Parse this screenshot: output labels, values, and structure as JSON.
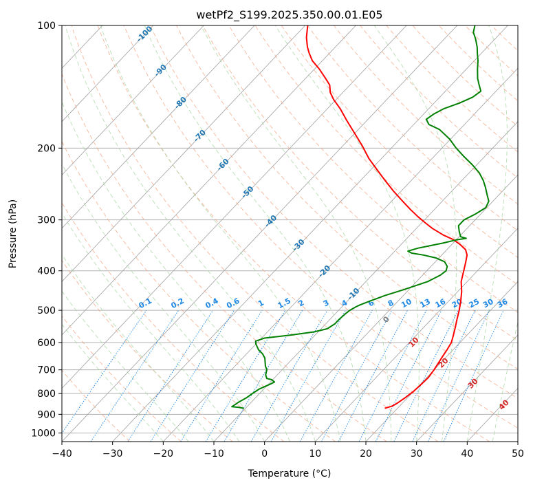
{
  "chart_data": {
    "type": "line",
    "title": "wetPf2_S199.2025.350.00.01.E05",
    "xlabel": "Temperature (°C)",
    "ylabel": "Pressure (hPa)",
    "xlim": [
      -40,
      50
    ],
    "ylim": [
      1050,
      100
    ],
    "x_ticks": [
      -40,
      -30,
      -20,
      -10,
      0,
      10,
      20,
      30,
      40,
      50
    ],
    "y_ticks": [
      100,
      200,
      300,
      400,
      500,
      600,
      700,
      800,
      900,
      1000
    ],
    "colors": {
      "temperature": "#ff0000",
      "dewpoint": "#008000",
      "isotherm": "#a0a0a0",
      "dry_adiabat": "#f4a582",
      "moist_adiabat": "#a6d6a0",
      "mixing_ratio": "#1e88e5",
      "isotherm_label": "#1f77b4",
      "theta_label": "#d62728",
      "zero_label": "#808080"
    },
    "isotherm_labels": [
      "-100",
      "-90",
      "-80",
      "-70",
      "-60",
      "-50",
      "-40",
      "-30",
      "-20",
      "-10",
      "0",
      "10",
      "20",
      "30",
      "40"
    ],
    "mixing_ratio_labels": [
      "0.1",
      "0.2",
      "0.4",
      "0.6",
      "1",
      "1.5",
      "2",
      "3",
      "4",
      "6",
      "8",
      "10",
      "13",
      "16",
      "20",
      "25",
      "30",
      "36"
    ],
    "series": [
      {
        "name": "Temperature",
        "points": [
          [
            17.5,
            870
          ],
          [
            18.5,
            860
          ],
          [
            19.0,
            845
          ],
          [
            19.5,
            820
          ],
          [
            20.0,
            790
          ],
          [
            20.2,
            760
          ],
          [
            20.3,
            730
          ],
          [
            20.0,
            700
          ],
          [
            19.6,
            675
          ],
          [
            19.2,
            650
          ],
          [
            18.8,
            625
          ],
          [
            18.3,
            600
          ],
          [
            17.3,
            575
          ],
          [
            16.2,
            550
          ],
          [
            15.0,
            525
          ],
          [
            13.8,
            500
          ],
          [
            12.4,
            475
          ],
          [
            10.8,
            450
          ],
          [
            8.8,
            425
          ],
          [
            7.3,
            400
          ],
          [
            6.0,
            380
          ],
          [
            5.0,
            366
          ],
          [
            3.7,
            355
          ],
          [
            1.7,
            345
          ],
          [
            -0.7,
            335
          ],
          [
            -3.4,
            327
          ],
          [
            -6.8,
            315
          ],
          [
            -9.3,
            305
          ],
          [
            -11.8,
            295
          ],
          [
            -14.7,
            283
          ],
          [
            -17.8,
            270
          ],
          [
            -21.5,
            255
          ],
          [
            -25.2,
            240
          ],
          [
            -28.5,
            227
          ],
          [
            -32.5,
            212
          ],
          [
            -36.0,
            198
          ],
          [
            -40.0,
            184
          ],
          [
            -44.0,
            171
          ],
          [
            -47.5,
            160
          ],
          [
            -50.5,
            152
          ],
          [
            -52.5,
            146
          ],
          [
            -54.0,
            140
          ],
          [
            -56.0,
            135
          ],
          [
            -59.0,
            128
          ],
          [
            -62.0,
            122
          ],
          [
            -64.0,
            117
          ],
          [
            -65.5,
            113
          ],
          [
            -67.5,
            107
          ],
          [
            -69.5,
            100
          ]
        ]
      },
      {
        "name": "Dewpoint",
        "points": [
          [
            -10.3,
            870
          ],
          [
            -11.6,
            865
          ],
          [
            -13.0,
            862
          ],
          [
            -12.8,
            855
          ],
          [
            -12.5,
            840
          ],
          [
            -11.8,
            820
          ],
          [
            -11.4,
            800
          ],
          [
            -10.9,
            780
          ],
          [
            -9.7,
            760
          ],
          [
            -9.2,
            750
          ],
          [
            -10.2,
            740
          ],
          [
            -11.4,
            735
          ],
          [
            -12.3,
            720
          ],
          [
            -13.0,
            700
          ],
          [
            -14.0,
            685
          ],
          [
            -14.8,
            670
          ],
          [
            -15.6,
            655
          ],
          [
            -16.8,
            640
          ],
          [
            -18.4,
            625
          ],
          [
            -20.0,
            605
          ],
          [
            -20.6,
            595
          ],
          [
            -19.4,
            585
          ],
          [
            -14.8,
            575
          ],
          [
            -10.8,
            565
          ],
          [
            -8.8,
            555
          ],
          [
            -8.2,
            540
          ],
          [
            -8.2,
            525
          ],
          [
            -8.0,
            510
          ],
          [
            -7.8,
            500
          ],
          [
            -7.2,
            490
          ],
          [
            -6.8,
            485
          ],
          [
            -5.6,
            475
          ],
          [
            -3.6,
            460
          ],
          [
            -1.0,
            445
          ],
          [
            2.2,
            425
          ],
          [
            3.5,
            410
          ],
          [
            3.8,
            400
          ],
          [
            3.2,
            390
          ],
          [
            1.8,
            380
          ],
          [
            -0.6,
            372
          ],
          [
            -3.6,
            366
          ],
          [
            -6.3,
            362
          ],
          [
            -7.4,
            358
          ],
          [
            -6.0,
            352
          ],
          [
            -4.0,
            347
          ],
          [
            -2.0,
            342
          ],
          [
            0.0,
            336
          ],
          [
            1.7,
            333
          ],
          [
            0.3,
            330
          ],
          [
            -1.0,
            320
          ],
          [
            -2.2,
            310
          ],
          [
            -2.2,
            300
          ],
          [
            -1.0,
            290
          ],
          [
            -0.2,
            280
          ],
          [
            -0.8,
            270
          ],
          [
            -2.4,
            260
          ],
          [
            -4.0,
            250
          ],
          [
            -5.8,
            240
          ],
          [
            -8.0,
            230
          ],
          [
            -10.8,
            220
          ],
          [
            -14.0,
            210
          ],
          [
            -17.2,
            200
          ],
          [
            -20.2,
            190
          ],
          [
            -24.0,
            180
          ],
          [
            -27.0,
            175
          ],
          [
            -28.5,
            170
          ],
          [
            -28.0,
            165
          ],
          [
            -27.0,
            160
          ],
          [
            -25.0,
            155
          ],
          [
            -23.5,
            150
          ],
          [
            -23.0,
            145
          ],
          [
            -24.5,
            140
          ],
          [
            -26.0,
            135
          ],
          [
            -27.8,
            128
          ],
          [
            -29.3,
            122
          ],
          [
            -30.8,
            117
          ],
          [
            -32.0,
            113
          ],
          [
            -33.8,
            108
          ],
          [
            -35.5,
            104
          ],
          [
            -36.5,
            100
          ]
        ]
      }
    ]
  }
}
